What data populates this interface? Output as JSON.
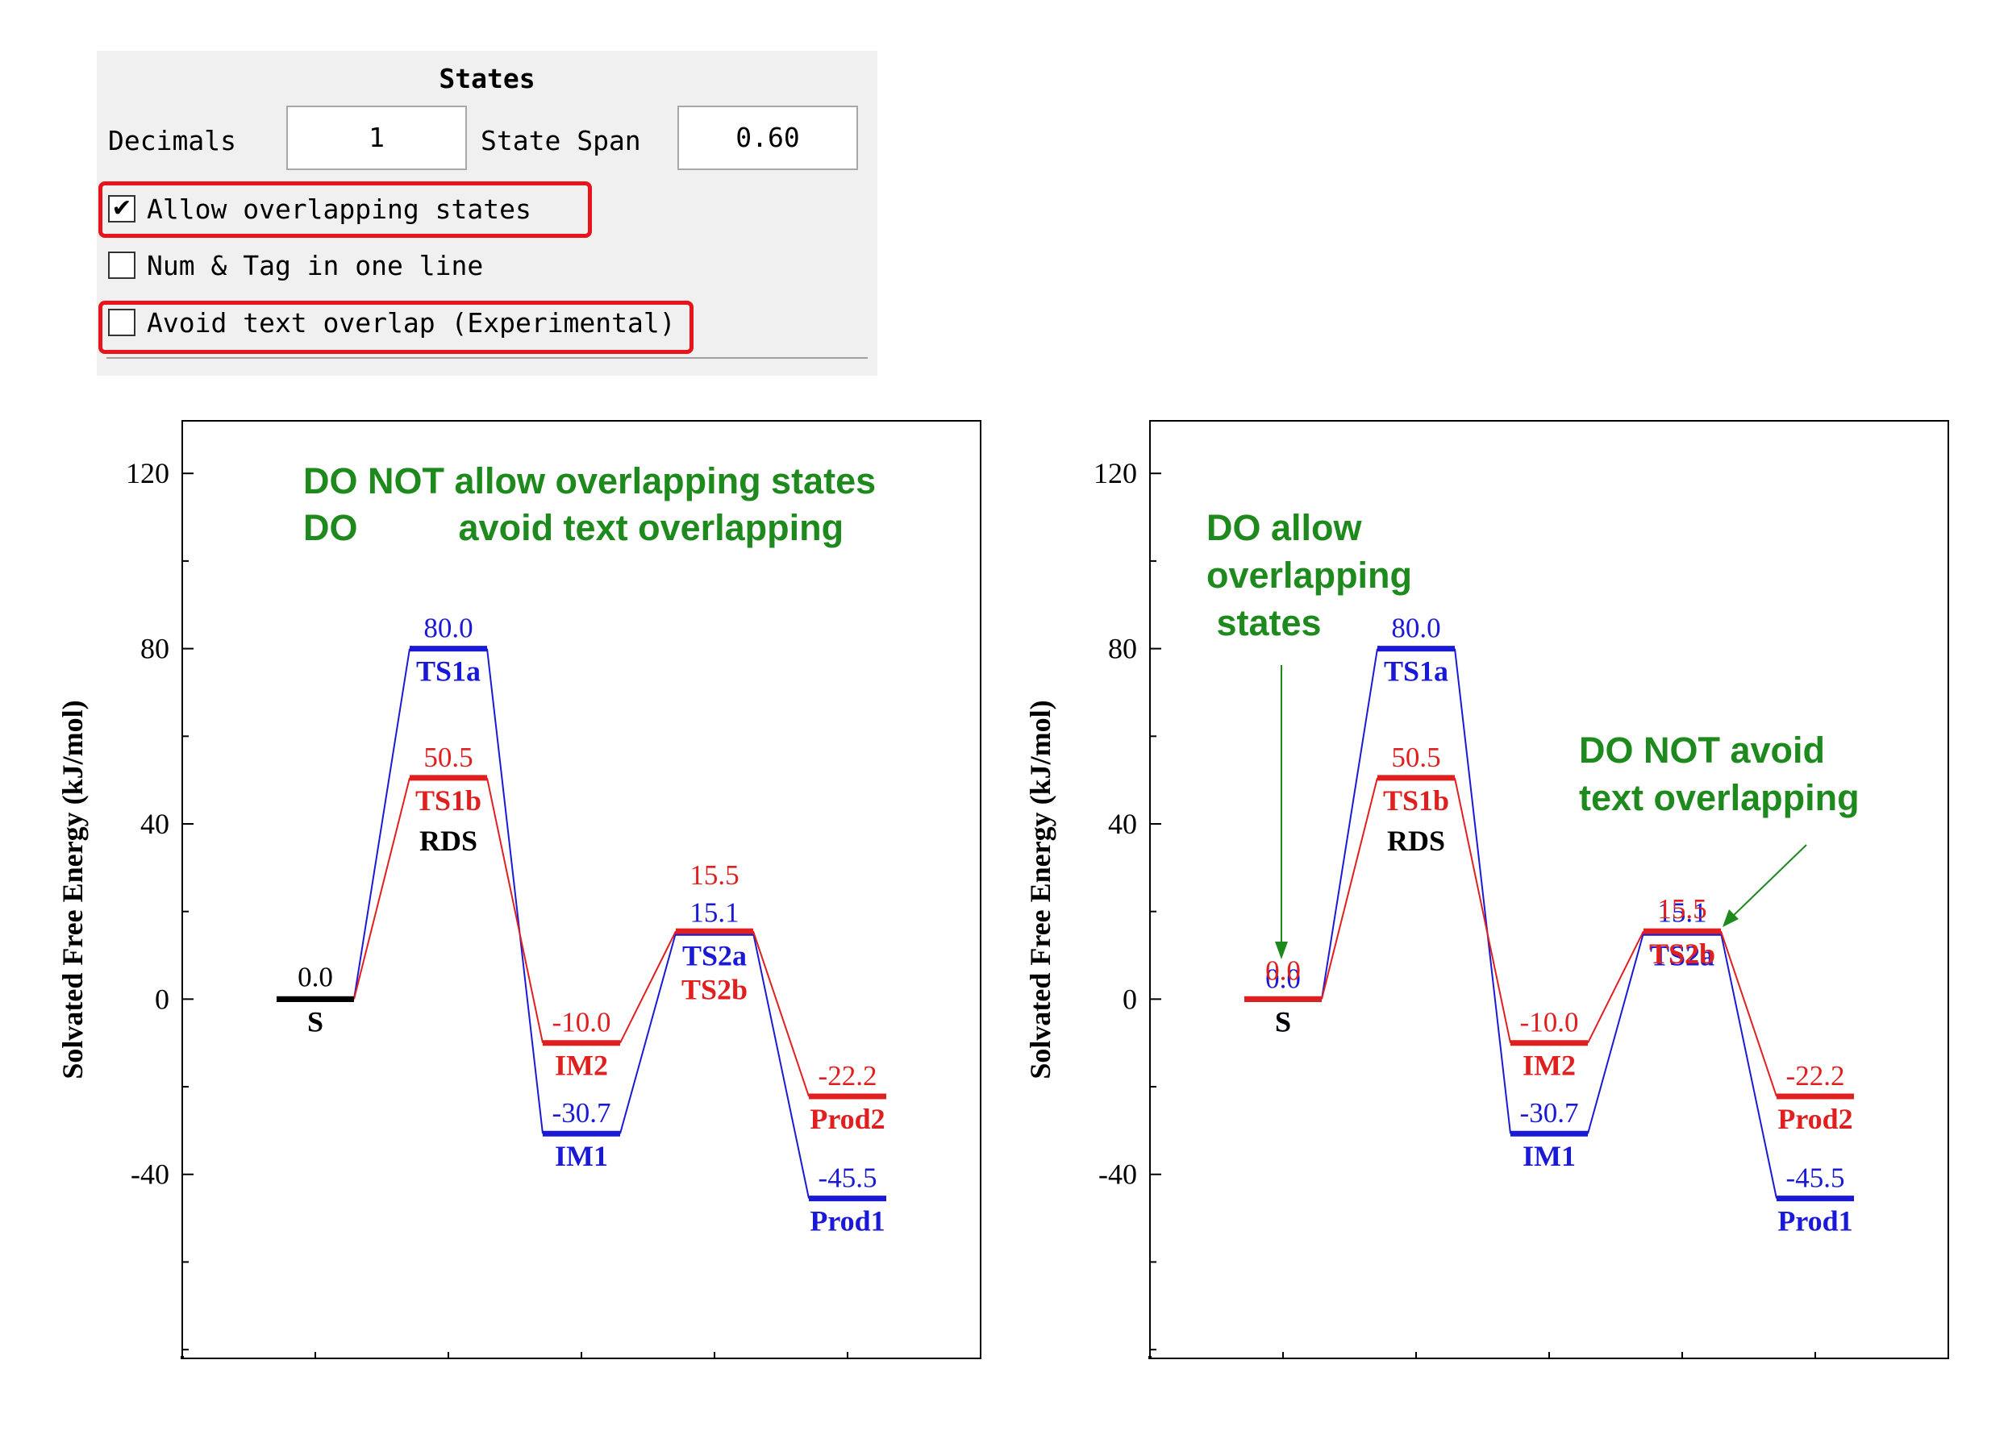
{
  "panel": {
    "title": "States",
    "decimals_label": "Decimals",
    "decimals_value": "1",
    "span_label": "State Span",
    "span_value": "0.60",
    "allow_overlap_label": "Allow overlapping states",
    "allow_overlap_checked": true,
    "num_tag_label": "Num & Tag in one line",
    "num_tag_checked": false,
    "avoid_overlap_label": "Avoid text overlap (Experimental)",
    "avoid_overlap_checked": false,
    "highlight_color": "#e8131b"
  },
  "chart_data": [
    {
      "type": "energy_profile",
      "ylabel": "Solvated Free Energy (kJ/mol)",
      "ylim": [
        -82,
        132
      ],
      "yticks": [
        -40,
        0,
        40,
        80,
        120
      ],
      "x_positions": [
        1,
        2,
        3,
        4,
        5
      ],
      "xlim": [
        0,
        6
      ],
      "annotations": [
        "DO NOT allow overlapping states",
        "DO          avoid text overlapping"
      ],
      "annotation_color": "#1e8a1e",
      "series": [
        {
          "color": "#1a1ad6",
          "states": [
            {
              "x": 1,
              "value": 0.0,
              "value_label": "0.0",
              "name": "S"
            },
            {
              "x": 2,
              "value": 80.0,
              "value_label": "80.0",
              "name": "TS1a"
            },
            {
              "x": 3,
              "value": -30.7,
              "value_label": "-30.7",
              "name": "IM1"
            },
            {
              "x": 4,
              "value": 15.1,
              "value_label": "15.1",
              "name": "TS2a"
            },
            {
              "x": 5,
              "value": -45.5,
              "value_label": "-45.5",
              "name": "Prod1"
            }
          ]
        },
        {
          "color": "#e01f1f",
          "states": [
            {
              "x": 1,
              "value": 0.0,
              "value_label": "",
              "name": ""
            },
            {
              "x": 2,
              "value": 50.5,
              "value_label": "50.5",
              "name": "TS1b"
            },
            {
              "x": 3,
              "value": -10.0,
              "value_label": "-10.0",
              "name": "IM2"
            },
            {
              "x": 4,
              "value": 15.5,
              "value_label": "15.5",
              "name": "TS2b"
            },
            {
              "x": 5,
              "value": -22.2,
              "value_label": "-22.2",
              "name": "Prod2"
            }
          ]
        }
      ],
      "extra_labels": [
        {
          "text": "RDS",
          "color": "#000000"
        }
      ],
      "merged_state": {
        "value": 0.0,
        "value_label": "0.0",
        "name": "S",
        "color": "#000000"
      }
    },
    {
      "type": "energy_profile",
      "ylabel": "Solvated Free Energy (kJ/mol)",
      "ylim": [
        -82,
        132
      ],
      "yticks": [
        -40,
        0,
        40,
        80,
        120
      ],
      "x_positions": [
        1,
        2,
        3,
        4,
        5
      ],
      "xlim": [
        0,
        6
      ],
      "annotations": [
        "DO allow",
        "overlapping",
        " states",
        "DO NOT avoid",
        "text overlapping"
      ],
      "annotation_color": "#1e8a1e",
      "series": [
        {
          "color": "#1a1ad6",
          "states": [
            {
              "x": 1,
              "value": 0.0,
              "value_label": "0.0",
              "name": "S"
            },
            {
              "x": 2,
              "value": 80.0,
              "value_label": "80.0",
              "name": "TS1a"
            },
            {
              "x": 3,
              "value": -30.7,
              "value_label": "-30.7",
              "name": "IM1"
            },
            {
              "x": 4,
              "value": 15.1,
              "value_label": "15.1",
              "name": "TS2a"
            },
            {
              "x": 5,
              "value": -45.5,
              "value_label": "-45.5",
              "name": "Prod1"
            }
          ]
        },
        {
          "color": "#e01f1f",
          "states": [
            {
              "x": 1,
              "value": 0.0,
              "value_label": "0.0",
              "name": "S"
            },
            {
              "x": 2,
              "value": 50.5,
              "value_label": "50.5",
              "name": "TS1b"
            },
            {
              "x": 3,
              "value": -10.0,
              "value_label": "-10.0",
              "name": "IM2"
            },
            {
              "x": 4,
              "value": 15.5,
              "value_label": "15.5",
              "name": "TS2b"
            },
            {
              "x": 5,
              "value": -22.2,
              "value_label": "-22.2",
              "name": "Prod2"
            }
          ]
        }
      ],
      "extra_labels": [
        {
          "text": "RDS",
          "color": "#000000"
        }
      ]
    }
  ]
}
